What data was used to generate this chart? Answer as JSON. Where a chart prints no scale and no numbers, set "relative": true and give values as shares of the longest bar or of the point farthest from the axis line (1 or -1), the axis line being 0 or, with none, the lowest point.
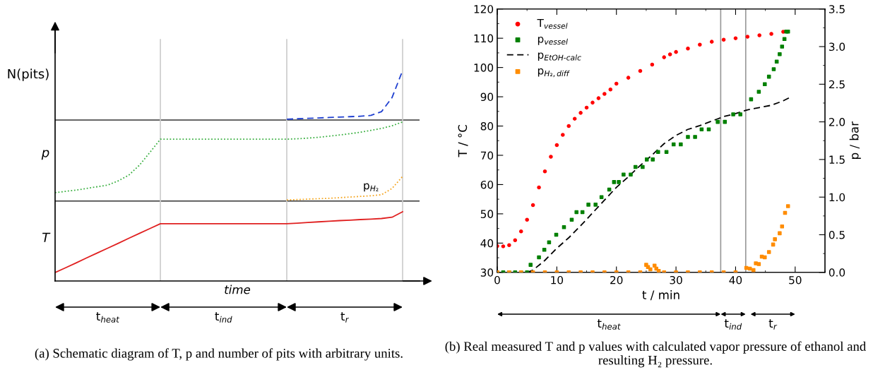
{
  "chart_data": [
    {
      "type": "line",
      "relative": true,
      "xlabel": "time",
      "legend": false,
      "grid": "x",
      "categories": [
        null,
        null,
        null,
        null,
        null,
        null,
        null,
        null,
        null,
        null,
        null,
        null,
        null,
        null,
        null,
        null,
        null,
        null,
        null,
        null,
        null,
        null,
        null,
        null,
        null,
        null,
        null,
        null,
        null,
        null,
        null,
        null,
        null,
        null
      ],
      "series": [
        {
          "color": "#e02020",
          "line_style": "solid",
          "values": [
            0.04,
            0.063,
            0.086,
            0.11,
            0.133,
            0.156,
            0.179,
            0.203,
            0.226,
            0.249,
            0.272,
            0.272,
            0.272,
            0.272,
            0.272,
            0.272,
            0.272,
            0.272,
            0.272,
            0.272,
            0.272,
            0.272,
            0.272,
            0.275,
            0.278,
            0.281,
            0.284,
            0.287,
            0.289,
            0.292,
            0.294,
            0.297,
            0.303,
            0.329
          ]
        },
        {
          "color": "#3cb043",
          "line_style": "dotted",
          "values": [
            0.42,
            0.426,
            0.432,
            0.44,
            0.448,
            0.456,
            0.476,
            0.503,
            0.55,
            0.611,
            0.674,
            0.674,
            0.674,
            0.674,
            0.674,
            0.674,
            0.674,
            0.674,
            0.674,
            0.674,
            0.674,
            0.674,
            0.674,
            0.676,
            0.679,
            0.683,
            0.688,
            0.694,
            0.7,
            0.707,
            0.716,
            0.725,
            0.738,
            0.756
          ]
        },
        {
          "color": "#2040d0",
          "line_style": "dashed",
          "values": [
            null,
            null,
            null,
            null,
            null,
            null,
            null,
            null,
            null,
            null,
            null,
            null,
            null,
            null,
            null,
            null,
            null,
            null,
            null,
            null,
            null,
            null,
            0.769,
            0.771,
            0.773,
            0.775,
            0.777,
            0.779,
            0.781,
            0.783,
            0.787,
            0.805,
            0.872,
            1.0
          ]
        },
        {
          "name": "p$_{H₂}$",
          "color": "#f5a623",
          "line_style": "dotted",
          "values": [
            null,
            null,
            null,
            null,
            null,
            null,
            null,
            null,
            null,
            null,
            null,
            null,
            null,
            null,
            null,
            null,
            null,
            null,
            null,
            null,
            null,
            null,
            0.385,
            0.387,
            0.389,
            0.391,
            0.393,
            0.396,
            0.399,
            0.402,
            0.405,
            0.41,
            0.44,
            0.497
          ]
        }
      ],
      "ref_lines": [
        {
          "axis": "y",
          "value": 0.765,
          "color": "#333333"
        },
        {
          "axis": "y",
          "value": 0.38,
          "color": "#333333"
        }
      ],
      "annotations": [
        "N(pits)",
        "p",
        "T",
        "t$_{heat}$",
        "t$_{ind}$",
        "t$_{r}$",
        "(a) Schematic diagram of T, p and number of pits with arbitrary units."
      ]
    },
    {
      "type": "scatter",
      "xlabel": "t / min",
      "ylabel": "T / °C",
      "y2label": "p / bar",
      "legend": "top left",
      "grid": false,
      "xlim": [
        0,
        55
      ],
      "xticks": [
        0,
        10,
        20,
        30,
        40,
        50
      ],
      "ylim": [
        30,
        120
      ],
      "yticks": [
        30,
        40,
        50,
        60,
        70,
        80,
        90,
        100,
        110,
        120
      ],
      "y2lim": [
        0,
        3.5
      ],
      "y2ticks": [
        {
          "value": 0,
          "label": "0.0"
        },
        {
          "value": 0.5,
          "label": "0.5"
        },
        {
          "value": 1,
          "label": "1.0"
        },
        {
          "value": 1.5,
          "label": "1.5"
        },
        {
          "value": 2,
          "label": "2.0"
        },
        {
          "value": 2.5,
          "label": "2.5"
        },
        {
          "value": 3,
          "label": "3.0"
        },
        {
          "value": 3.5,
          "label": "3.5"
        }
      ],
      "series": [
        {
          "name": "T$_{vessel}$",
          "color": "#ff0000",
          "marker": "circle",
          "x": [
            0,
            1,
            2,
            3,
            4,
            5,
            6,
            7,
            8,
            9,
            10,
            11,
            12,
            13,
            14,
            15,
            16,
            17,
            18,
            19,
            20,
            22,
            24,
            26,
            28,
            29,
            30,
            32,
            34,
            36,
            38,
            40,
            42,
            44,
            46,
            48
          ],
          "values": [
            39,
            38.9,
            39.3,
            41,
            44,
            48,
            53,
            59,
            64.5,
            69.5,
            73.5,
            77,
            80,
            82.5,
            84.5,
            86.3,
            88,
            89.5,
            91,
            92.5,
            94.5,
            96.5,
            98.8,
            101,
            103.5,
            104.5,
            105.3,
            106.5,
            107.8,
            108.8,
            109.5,
            110,
            110.5,
            111,
            111.5,
            112.2
          ]
        },
        {
          "name": "p$_{vessel}$",
          "color": "#008000",
          "marker": "square",
          "axis": "y2",
          "x": [
            0,
            1,
            2,
            3,
            4,
            5,
            5.6,
            7.0,
            7.9,
            8.7,
            9.9,
            11.2,
            12.5,
            13.3,
            14.3,
            15.3,
            16.5,
            17.5,
            18.8,
            19.6,
            20.4,
            21.2,
            22.4,
            23.2,
            24.4,
            25.1,
            26.1,
            27.0,
            28.4,
            29.6,
            30.8,
            32.0,
            33.2,
            34.3,
            35.5,
            37.0,
            38.2,
            39.6,
            40.8,
            42.6,
            43.9,
            44.9,
            45.6,
            46.4,
            46.9,
            47.4,
            47.8,
            48.2,
            48.5,
            48.8
          ],
          "values": [
            0,
            0,
            0,
            0,
            0,
            0,
            0.1,
            0.2,
            0.3,
            0.4,
            0.5,
            0.6,
            0.7,
            0.8,
            0.8,
            0.9,
            0.9,
            1.0,
            1.1,
            1.2,
            1.2,
            1.3,
            1.3,
            1.4,
            1.4,
            1.5,
            1.5,
            1.6,
            1.6,
            1.7,
            1.7,
            1.8,
            1.8,
            1.9,
            1.9,
            2.0,
            2.0,
            2.1,
            2.1,
            2.3,
            2.4,
            2.5,
            2.6,
            2.7,
            2.8,
            2.9,
            3.0,
            3.1,
            3.2,
            3.2
          ]
        },
        {
          "name": "p$_{EtOH‐calc}$",
          "type": "line",
          "line_style": "dashed",
          "color": "#000000",
          "axis": "y2",
          "x": [
            5,
            6,
            8,
            10,
            12,
            14,
            16,
            18,
            20,
            22,
            24,
            26,
            28,
            30,
            32,
            34,
            36,
            38,
            40,
            42,
            44,
            46,
            48,
            49
          ],
          "values": [
            0.0,
            0.03,
            0.16,
            0.32,
            0.46,
            0.62,
            0.79,
            0.96,
            1.13,
            1.27,
            1.42,
            1.56,
            1.71,
            1.82,
            1.9,
            1.95,
            2.01,
            2.07,
            2.11,
            2.16,
            2.19,
            2.22,
            2.28,
            2.32
          ]
        },
        {
          "name": "p$_{H₂,diff}$",
          "color": "#ff8c00",
          "marker": "square",
          "axis": "y2",
          "x": [
            0,
            2,
            4,
            6,
            8,
            10,
            12,
            14,
            16,
            18,
            20,
            22,
            24,
            25.0,
            25.3,
            25.7,
            26.4,
            26.7,
            27.1,
            28,
            30,
            32,
            34,
            36,
            38,
            40,
            41.8,
            42.4,
            43.0,
            43.4,
            43.9,
            44.4,
            44.9,
            45.6,
            46.3,
            46.6,
            47.4,
            47.8,
            48.3,
            48.8
          ],
          "values": [
            0,
            0,
            0,
            0,
            0,
            0,
            0,
            0,
            0,
            0,
            0,
            0,
            0,
            0.1,
            0.07,
            0.04,
            0.09,
            0.05,
            0.02,
            0,
            0,
            0,
            0,
            0,
            0,
            0,
            0.06,
            0.05,
            0.03,
            0.12,
            0.11,
            0.21,
            0.2,
            0.27,
            0.37,
            0.44,
            0.52,
            0.61,
            0.79,
            0.88
          ]
        }
      ],
      "ref_lines": [
        {
          "axis": "x",
          "value": 37.5,
          "color": "#999999"
        },
        {
          "axis": "x",
          "value": 41.7,
          "color": "#999999"
        }
      ],
      "annotations": [
        "t$_{heat}$",
        "t$_{ind}$",
        "t$_{r}$",
        "(b) Real measured T and p values with calculated vapor pressure of ethanol and resulting H₂ pressure."
      ]
    }
  ]
}
